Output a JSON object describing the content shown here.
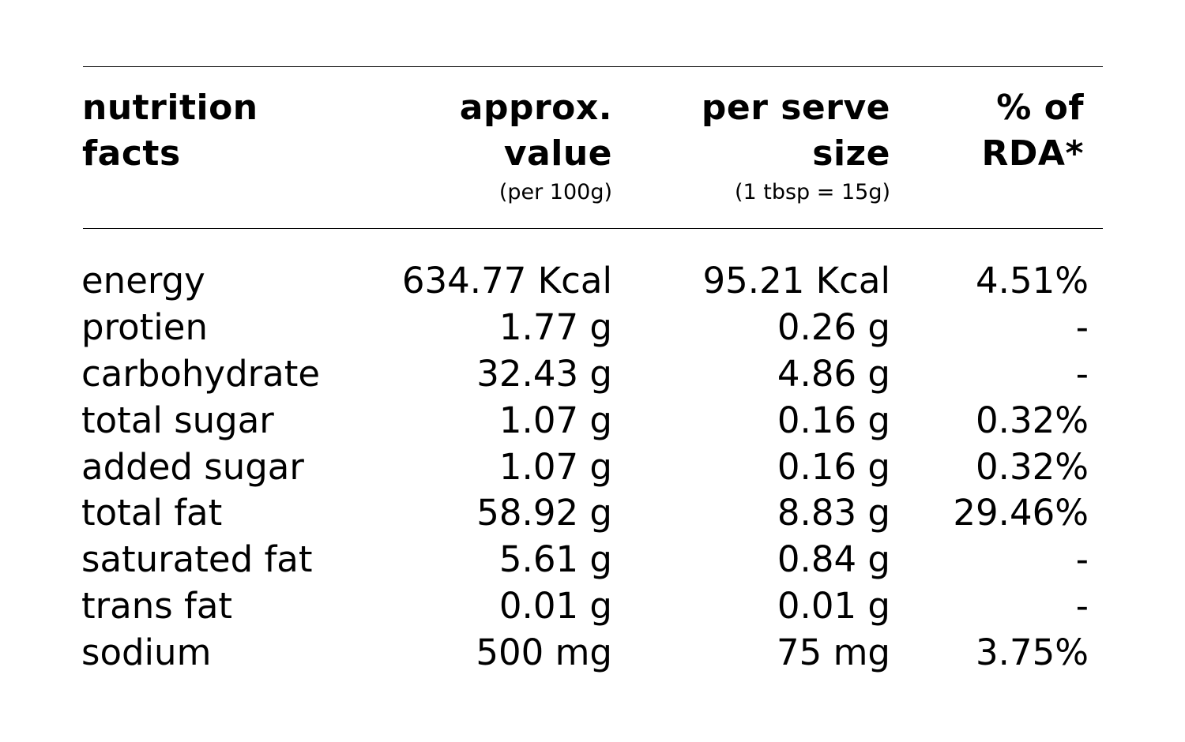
{
  "header": {
    "col1": [
      "nutrition",
      "facts"
    ],
    "col2": [
      "approx.",
      "value"
    ],
    "col2_sub": "(per 100g)",
    "col3": [
      "per serve",
      "size"
    ],
    "col3_sub": "(1 tbsp = 15g)",
    "col4": [
      "% of",
      "RDA*"
    ]
  },
  "rows": [
    {
      "name": "energy",
      "per100": "634.77 Kcal",
      "serve": "95.21 Kcal",
      "rda": "4.51%"
    },
    {
      "name": "protien",
      "per100": "1.77 g",
      "serve": "0.26 g",
      "rda": "-"
    },
    {
      "name": "carbohydrate",
      "per100": "32.43 g",
      "serve": "4.86 g",
      "rda": "-"
    },
    {
      "name": "total sugar",
      "per100": "1.07 g",
      "serve": "0.16 g",
      "rda": "0.32%"
    },
    {
      "name": "added sugar",
      "per100": "1.07 g",
      "serve": "0.16 g",
      "rda": "0.32%"
    },
    {
      "name": "total fat",
      "per100": "58.92 g",
      "serve": "8.83 g",
      "rda": "29.46%"
    },
    {
      "name": "saturated fat",
      "per100": "5.61 g",
      "serve": "0.84 g",
      "rda": "-"
    },
    {
      "name": "trans fat",
      "per100": "0.01 g",
      "serve": "0.01 g",
      "rda": "-"
    },
    {
      "name": "sodium",
      "per100": "500 mg",
      "serve": "75 mg",
      "rda": "3.75%"
    }
  ]
}
